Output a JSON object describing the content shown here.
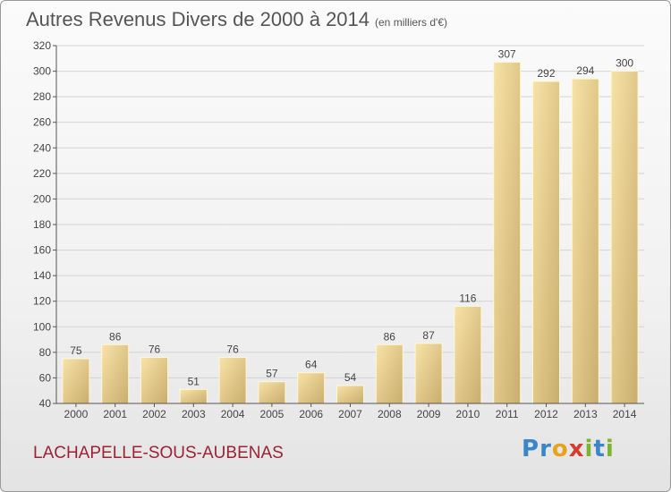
{
  "header": {
    "title": "Autres Revenus Divers de 2000 à 2014",
    "subtitle": "(en milliers d'€)"
  },
  "footer": {
    "commune": "LACHAPELLE-SOUS-AUBENAS",
    "brand_letters": [
      "P",
      "r",
      "o",
      "x",
      "i",
      "t",
      "i"
    ]
  },
  "colors": {
    "commune": "#9b2335",
    "bar_light": "#f7e3a6",
    "bar_dark": "#c9ad6e",
    "brand": [
      "#3a86c8",
      "#3a86c8",
      "#e8a21b",
      "#d93a2b",
      "#7bb52f",
      "#3a86c8",
      "#7bb52f"
    ]
  },
  "chart_data": {
    "type": "bar",
    "categories": [
      "2000",
      "2001",
      "2002",
      "2003",
      "2004",
      "2005",
      "2006",
      "2007",
      "2008",
      "2009",
      "2010",
      "2011",
      "2012",
      "2013",
      "2014"
    ],
    "values": [
      75,
      86,
      76,
      51,
      76,
      57,
      64,
      54,
      86,
      87,
      116,
      307,
      292,
      294,
      300
    ],
    "value_labels": [
      "75",
      "86",
      "76",
      "51",
      "76",
      "57",
      "64",
      "54",
      "86",
      "87",
      "116",
      "307",
      "292",
      "294",
      "300"
    ],
    "ylim": [
      40,
      320
    ],
    "yticks": [
      "40",
      "60",
      "80",
      "100",
      "120",
      "140",
      "160",
      "180",
      "200",
      "220",
      "240",
      "260",
      "280",
      "300",
      "320"
    ],
    "grid": true,
    "xlabel": "",
    "ylabel": ""
  }
}
